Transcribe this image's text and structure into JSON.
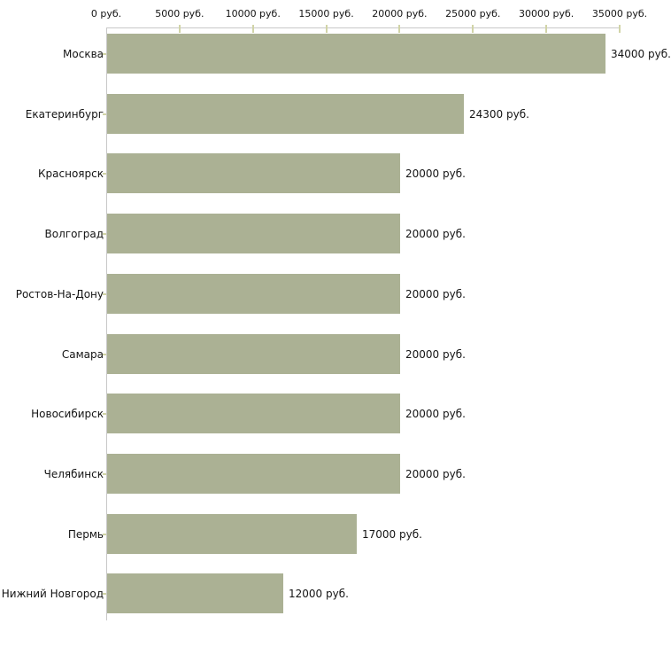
{
  "chart_data": {
    "type": "bar",
    "orientation": "horizontal",
    "title": "",
    "xlabel": "",
    "ylabel": "",
    "xlim": [
      0,
      35000
    ],
    "grid": false,
    "legend_position": "none",
    "x_tick_values": [
      0,
      5000,
      10000,
      15000,
      20000,
      25000,
      30000,
      35000
    ],
    "x_tick_labels": [
      "0 руб.",
      "5000 руб.",
      "10000 руб.",
      "15000 руб.",
      "20000 руб.",
      "25000 руб.",
      "30000 руб.",
      "35000 руб."
    ],
    "categories": [
      "Москва",
      "Екатеринбург",
      "Красноярск",
      "Волгоград",
      "Ростов-На-Дону",
      "Самара",
      "Новосибирск",
      "Челябинск",
      "Пермь",
      "Нижний Новгород"
    ],
    "values": [
      34000,
      24300,
      20000,
      20000,
      20000,
      20000,
      20000,
      20000,
      17000,
      12000
    ],
    "value_labels": [
      "34000 руб.",
      "24300 руб.",
      "20000 руб.",
      "20000 руб.",
      "20000 руб.",
      "20000 руб.",
      "20000 руб.",
      "20000 руб.",
      "17000 руб.",
      "12000 руб."
    ],
    "bar_color": "#abb194",
    "axis_color": "#c8c8c8",
    "tick_mark_color": "#d1d4a7",
    "text_color": "#141414"
  }
}
